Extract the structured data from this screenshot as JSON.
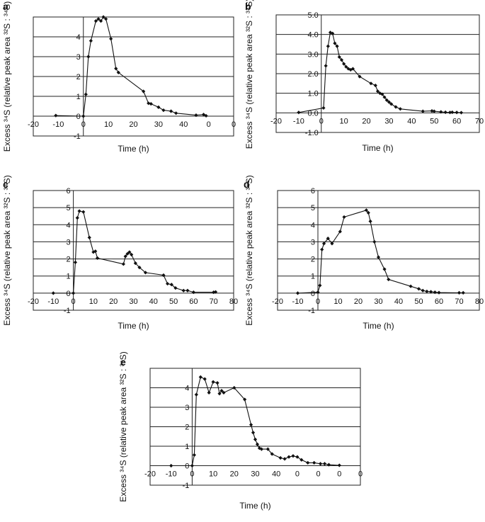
{
  "chart_data": [
    {
      "panel": "a",
      "type": "line",
      "xlabel": "Time (h)",
      "ylabel": "Excess ³⁴S (relative peak area ³²S : ³⁴S)",
      "xlim": [
        -20,
        60
      ],
      "ylim": [
        -1,
        5
      ],
      "xtick_labels": [
        "-20",
        "-10",
        "0",
        "10",
        "20",
        "30",
        "40",
        "0",
        "0"
      ],
      "ytick_labels": [
        "-1",
        "0",
        "1",
        "2",
        "3",
        "4"
      ],
      "x": [
        -11,
        0,
        1,
        2,
        3,
        5,
        6,
        7,
        8,
        9,
        11,
        13,
        14,
        24,
        26,
        27,
        30,
        32,
        35,
        37,
        45,
        48,
        49
      ],
      "y": [
        0.03,
        0.0,
        1.1,
        3.0,
        3.8,
        4.8,
        4.9,
        4.8,
        5.0,
        4.9,
        3.9,
        2.4,
        2.2,
        1.25,
        0.65,
        0.62,
        0.45,
        0.3,
        0.25,
        0.15,
        0.05,
        0.08,
        0.02
      ]
    },
    {
      "panel": "b",
      "type": "line",
      "xlabel": "Time (h)",
      "ylabel": "Excess ³⁴S (relative peak area ³²S : ³⁴S)",
      "xlim": [
        -20,
        70
      ],
      "ylim": [
        -1,
        5
      ],
      "xtick_labels": [
        "-20",
        "-10",
        "0",
        "10",
        "20",
        "30",
        "40",
        "50",
        "60",
        "70"
      ],
      "ytick_labels": [
        "-1.0",
        "0.0",
        "1.0",
        "2.0",
        "3.0",
        "4.0",
        "5.0"
      ],
      "x": [
        -10,
        1,
        2,
        3,
        4,
        5,
        6,
        7,
        8,
        9,
        10,
        11,
        12,
        13,
        14,
        17,
        22,
        24,
        25,
        26,
        27,
        28,
        29,
        30,
        31,
        33,
        35,
        45,
        49,
        50,
        53,
        55,
        57,
        58,
        60,
        62
      ],
      "y": [
        0.02,
        0.25,
        2.4,
        3.4,
        4.1,
        4.05,
        3.55,
        3.4,
        2.85,
        2.7,
        2.5,
        2.35,
        2.25,
        2.2,
        2.25,
        1.85,
        1.5,
        1.4,
        1.1,
        1.0,
        0.95,
        0.8,
        0.65,
        0.55,
        0.45,
        0.3,
        0.2,
        0.08,
        0.1,
        0.08,
        0.05,
        0.03,
        0.02,
        0.03,
        0.02,
        0.01
      ]
    },
    {
      "panel": "c",
      "type": "line",
      "xlabel": "Time (h)",
      "ylabel": "Excess ³⁴S (relative peak area ³²S : ³⁴S)",
      "xlim": [
        -20,
        80
      ],
      "ylim": [
        -1,
        6
      ],
      "xtick_labels": [
        "-20",
        "-10",
        "0",
        "10",
        "20",
        "30",
        "40",
        "50",
        "60",
        "70",
        "80"
      ],
      "ytick_labels": [
        "-1",
        "0",
        "1",
        "2",
        "3",
        "4",
        "5",
        "6"
      ],
      "x": [
        -10,
        0,
        1,
        2,
        3,
        5,
        8,
        10,
        11,
        12,
        25,
        26,
        27,
        28,
        29,
        31,
        33,
        36,
        45,
        47,
        49,
        51,
        55,
        57,
        60,
        70,
        71
      ],
      "y": [
        0.0,
        0.0,
        1.8,
        4.4,
        4.8,
        4.75,
        3.25,
        2.4,
        2.45,
        2.05,
        1.7,
        2.15,
        2.3,
        2.4,
        2.25,
        1.75,
        1.5,
        1.2,
        1.05,
        0.55,
        0.5,
        0.3,
        0.15,
        0.15,
        0.05,
        0.05,
        0.07
      ]
    },
    {
      "panel": "d",
      "type": "line",
      "xlabel": "Time (h)",
      "ylabel": "Excess ³⁴S (relative peak area ³²S : ³⁴S)",
      "xlim": [
        -20,
        80
      ],
      "ylim": [
        -1,
        6
      ],
      "xtick_labels": [
        "-20",
        "-10",
        "0",
        "10",
        "20",
        "30",
        "40",
        "50",
        "60",
        "70",
        "80"
      ],
      "ytick_labels": [
        "-1",
        "0",
        "1",
        "2",
        "3",
        "4",
        "5",
        "6"
      ],
      "x": [
        -10,
        0,
        1,
        2,
        3,
        5,
        7,
        11,
        13,
        24,
        25,
        26,
        28,
        30,
        33,
        35,
        46,
        50,
        52,
        54,
        56,
        58,
        60,
        70,
        72
      ],
      "y": [
        0.0,
        0.05,
        0.45,
        2.55,
        2.9,
        3.2,
        2.9,
        3.6,
        4.45,
        4.85,
        4.7,
        4.2,
        3.0,
        2.1,
        1.4,
        0.8,
        0.4,
        0.25,
        0.15,
        0.1,
        0.08,
        0.05,
        0.03,
        0.02,
        0.02
      ]
    },
    {
      "panel": "e",
      "type": "line",
      "xlabel": "Time (h)",
      "ylabel": "Excess ³⁴S (relative peak area ³²S : ³⁴S)",
      "xlim": [
        -20,
        80
      ],
      "ylim": [
        -1,
        5
      ],
      "xtick_labels": [
        "-20",
        "-10",
        "0",
        "10",
        "20",
        "30",
        "40",
        "0",
        "0",
        "0",
        "0"
      ],
      "ytick_labels": [
        "-1",
        "0",
        "1",
        "2",
        "3",
        "4"
      ],
      "x": [
        -10,
        0,
        1,
        2,
        4,
        6,
        8,
        10,
        12,
        13,
        14,
        15,
        20,
        25,
        28,
        29,
        30,
        31,
        32,
        33,
        36,
        38,
        42,
        44,
        46,
        48,
        50,
        52,
        55,
        58,
        61,
        63,
        65,
        70
      ],
      "y": [
        0.0,
        0.0,
        0.55,
        3.65,
        4.55,
        4.45,
        3.75,
        4.3,
        4.25,
        3.7,
        3.85,
        3.75,
        4.0,
        3.4,
        2.1,
        1.7,
        1.35,
        1.1,
        0.9,
        0.85,
        0.85,
        0.6,
        0.4,
        0.35,
        0.45,
        0.5,
        0.45,
        0.3,
        0.15,
        0.15,
        0.1,
        0.1,
        0.05,
        0.02
      ]
    }
  ]
}
